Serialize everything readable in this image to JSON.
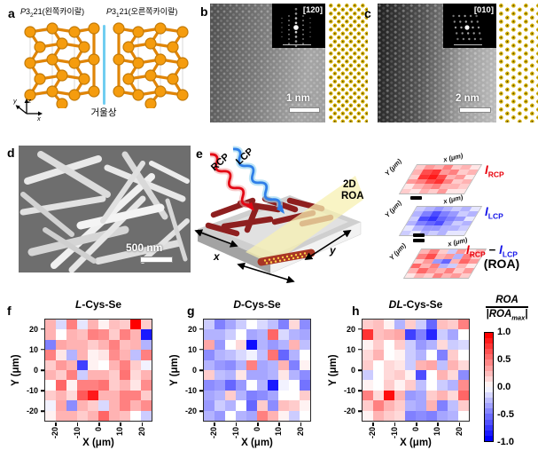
{
  "figure": {
    "panels": {
      "a": {
        "label": "a",
        "title_left": {
          "pre": "P",
          "mid": "3",
          "sub": "2",
          "post": "21(왼쪽카이랄)"
        },
        "title_right": {
          "pre": "P",
          "mid": "3",
          "sub": "1",
          "post": "21(오른쪽카이랄)"
        },
        "mirror_label": "거울상",
        "axes": {
          "x": "x",
          "y": "y",
          "z": "z"
        }
      },
      "b": {
        "label": "b",
        "fft_label": "[120]",
        "scale_bar": "1 nm"
      },
      "c": {
        "label": "c",
        "fft_label": "[010]",
        "scale_bar": "2 nm"
      },
      "d": {
        "label": "d",
        "scale_bar": "500 nm"
      },
      "e": {
        "label": "e",
        "rcp_label": "RCP",
        "lcp_label": "LCP",
        "beam_line1": "2D",
        "beam_line2": "ROA",
        "x_axis_label": "x",
        "y_axis_label": "y",
        "map_axis": {
          "x": "x (μm)",
          "y": "Y (μm)"
        },
        "i_rcp": {
          "base": "I",
          "sub": "RCP"
        },
        "i_lcp": {
          "base": "I",
          "sub": "LCP"
        },
        "minus_sign": "−",
        "equals_sign": "=",
        "roa_caption": "(ROA)",
        "colors": {
          "rcp": "#e8000b",
          "lcp": "#1414e8"
        }
      },
      "f": {
        "label": "f"
      },
      "g": {
        "label": "g"
      },
      "h": {
        "label": "h"
      }
    },
    "colorbar": {
      "numerator": "ROA",
      "denominator_pre": "|ROA",
      "denominator_sub": "max",
      "denominator_post": "|",
      "tick_labels": [
        "1.0",
        "0.5",
        "0.0",
        "-0.5",
        "-1.0"
      ],
      "range": [
        1.0,
        -1.0
      ],
      "segments": 20,
      "top_color": "#ff0000",
      "mid_color": "#ffffff",
      "bottom_color": "#0000ff"
    },
    "chart_data": [
      {
        "id": "f",
        "type": "heatmap",
        "colormap": "bwr",
        "title_italic": "L",
        "title_rest": "-Cys-Se",
        "xlabel": "X (μm)",
        "ylabel": "Y (μm)",
        "x_ticks": [
          "-20",
          "-10",
          "0",
          "10",
          "20"
        ],
        "y_ticks": [
          "20",
          "10",
          "0",
          "-10",
          "-20"
        ],
        "x_range": [
          -25,
          25
        ],
        "y_range": [
          -25,
          25
        ],
        "value_range": [
          -1,
          1
        ],
        "values": [
          [
            0.3,
            -0.15,
            0.5,
            -0.1,
            0.3,
            0.05,
            0.25,
            0.2,
            1.0,
            0.2
          ],
          [
            0.3,
            0.0,
            0.3,
            0.25,
            0.5,
            0.45,
            0.2,
            0.5,
            0.3,
            -0.9
          ],
          [
            -0.5,
            0.35,
            0.3,
            0.3,
            0.2,
            0.3,
            0.5,
            0.25,
            0.3,
            -0.3
          ],
          [
            0.5,
            0.1,
            -0.3,
            0.3,
            0.05,
            0.1,
            0.45,
            0.3,
            -0.25,
            0.5
          ],
          [
            0.2,
            0.4,
            0.3,
            -0.75,
            0.05,
            0.0,
            0.3,
            0.5,
            0.2,
            -0.05
          ],
          [
            0.3,
            0.2,
            0.5,
            -0.2,
            0.3,
            0.3,
            0.2,
            0.55,
            0.15,
            0.3
          ],
          [
            0.0,
            0.6,
            0.05,
            0.5,
            0.5,
            0.55,
            0.2,
            0.3,
            0.1,
            0.45
          ],
          [
            0.2,
            0.3,
            0.15,
            0.65,
            0.9,
            0.3,
            0.3,
            0.5,
            0.5,
            0.2
          ],
          [
            -0.05,
            0.35,
            -0.45,
            0.3,
            0.2,
            -0.15,
            0.3,
            0.5,
            0.3,
            0.45
          ],
          [
            0.05,
            0.3,
            0.3,
            0.2,
            0.3,
            0.6,
            0.3,
            0.25,
            0.0,
            -0.2
          ]
        ]
      },
      {
        "id": "g",
        "type": "heatmap",
        "colormap": "bwr",
        "title_italic": "D",
        "title_rest": "-Cys-Se",
        "xlabel": "X (μm)",
        "ylabel": "Y (μm)",
        "x_ticks": [
          "-20",
          "-10",
          "0",
          "10",
          "20"
        ],
        "y_ticks": [
          "20",
          "10",
          "0",
          "-10",
          "-20"
        ],
        "x_range": [
          -25,
          25
        ],
        "y_range": [
          -25,
          25
        ],
        "value_range": [
          -1,
          1
        ],
        "values": [
          [
            -0.2,
            -0.5,
            -0.35,
            -0.2,
            0.0,
            -0.15,
            -0.25,
            -0.5,
            0.15,
            -0.45
          ],
          [
            -0.3,
            -0.3,
            -0.2,
            0.0,
            -0.35,
            -0.3,
            0.6,
            -0.15,
            -0.3,
            -0.35
          ],
          [
            0.35,
            -0.4,
            0.0,
            0.15,
            -0.95,
            -0.3,
            -0.4,
            -0.3,
            0.3,
            -0.25
          ],
          [
            -0.45,
            -0.3,
            -0.25,
            -0.15,
            -0.05,
            -0.25,
            0.55,
            -0.6,
            -0.3,
            0.0
          ],
          [
            -0.3,
            -0.4,
            -0.45,
            -0.3,
            0.5,
            -0.35,
            -0.3,
            0.3,
            -0.5,
            0.05
          ],
          [
            0.2,
            -0.25,
            -0.3,
            0.1,
            -0.35,
            -0.35,
            -0.3,
            0.1,
            -0.3,
            -0.45
          ],
          [
            -0.45,
            -0.4,
            -0.6,
            -0.4,
            0.0,
            -0.3,
            -0.9,
            -0.05,
            0.0,
            -0.55
          ],
          [
            -0.35,
            -0.3,
            0.2,
            -0.3,
            -0.5,
            -0.45,
            -0.35,
            0.0,
            0.0,
            0.2
          ],
          [
            -0.4,
            -0.2,
            -0.3,
            0.0,
            -0.6,
            0.2,
            -0.45,
            0.25,
            0.2,
            0.05
          ],
          [
            -0.3,
            -0.4,
            0.0,
            -0.3,
            -0.35,
            0.5,
            0.3,
            0.05,
            -0.2,
            0.0
          ]
        ]
      },
      {
        "id": "h",
        "type": "heatmap",
        "colormap": "bwr",
        "title_italic": "DL",
        "title_rest": "-Cys-Se",
        "xlabel": "X (μm)",
        "ylabel": "Y (μm)",
        "x_ticks": [
          "-20",
          "-10",
          "0",
          "10",
          "20"
        ],
        "y_ticks": [
          "20",
          "10",
          "0",
          "-10",
          "-20"
        ],
        "x_range": [
          -25,
          25
        ],
        "y_range": [
          -25,
          25
        ],
        "value_range": [
          -1,
          1
        ],
        "values": [
          [
            0.2,
            0.25,
            0.05,
            -0.3,
            0.2,
            -0.2,
            -0.6,
            0.25,
            0.2,
            0.5
          ],
          [
            0.8,
            0.25,
            0.3,
            0.35,
            -0.75,
            -0.5,
            -0.85,
            -0.2,
            -0.35,
            0.0
          ],
          [
            0.05,
            0.2,
            0.0,
            0.2,
            -0.2,
            -0.4,
            -0.3,
            0.15,
            -0.2,
            -0.15
          ],
          [
            0.15,
            0.3,
            0.0,
            0.05,
            -0.2,
            -0.3,
            0.0,
            -0.5,
            0.2,
            0.0
          ],
          [
            0.2,
            0.0,
            0.15,
            0.1,
            -0.2,
            0.3,
            0.35,
            -0.25,
            0.3,
            0.15
          ],
          [
            -0.2,
            0.0,
            0.15,
            0.2,
            0.05,
            -0.7,
            0.0,
            0.3,
            0.15,
            -0.45
          ],
          [
            0.05,
            0.0,
            0.2,
            0.05,
            0.2,
            -0.25,
            0.0,
            -0.2,
            -0.3,
            0.45
          ],
          [
            0.5,
            0.15,
            0.95,
            0.3,
            -0.4,
            -0.35,
            0.2,
            0.3,
            0.15,
            0.6
          ],
          [
            0.2,
            0.5,
            0.3,
            0.2,
            -0.3,
            -0.35,
            0.3,
            -0.5,
            -0.25,
            0.2
          ],
          [
            0.05,
            0.3,
            0.2,
            0.15,
            -0.5,
            -0.45,
            -0.5,
            -0.35,
            -0.3,
            0.0
          ]
        ]
      },
      {
        "id": "rcp_mini",
        "type": "heatmap",
        "colormap": "bwr",
        "values": [
          [
            0.2,
            0.4,
            0.3,
            0.5,
            0.2,
            0.3,
            0.1
          ],
          [
            0.3,
            0.7,
            0.8,
            0.4,
            0.5,
            0.2,
            0.3
          ],
          [
            0.2,
            0.8,
            0.9,
            0.7,
            0.3,
            0.4,
            0.1
          ],
          [
            0.4,
            0.5,
            0.7,
            0.8,
            0.5,
            0.2,
            0.3
          ],
          [
            0.1,
            0.3,
            0.4,
            0.5,
            0.3,
            0.3,
            0.2
          ],
          [
            0.2,
            0.1,
            0.3,
            0.2,
            0.4,
            0.1,
            0.1
          ]
        ]
      },
      {
        "id": "lcp_mini",
        "type": "heatmap",
        "colormap": "bwr",
        "values": [
          [
            -0.2,
            -0.3,
            -0.4,
            -0.3,
            -0.2,
            -0.3,
            -0.1
          ],
          [
            -0.3,
            -0.5,
            -0.7,
            -0.5,
            -0.4,
            -0.2,
            -0.3
          ],
          [
            -0.2,
            -0.7,
            -0.8,
            -0.6,
            -0.5,
            -0.4,
            -0.1
          ],
          [
            -0.3,
            -0.5,
            -0.6,
            -0.7,
            -0.4,
            -0.2,
            -0.3
          ],
          [
            -0.1,
            -0.3,
            -0.4,
            -0.4,
            -0.3,
            -0.3,
            -0.2
          ],
          [
            -0.2,
            -0.1,
            -0.3,
            -0.2,
            -0.3,
            -0.1,
            -0.1
          ]
        ]
      },
      {
        "id": "roa_mini",
        "type": "heatmap",
        "colormap": "bwr",
        "values": [
          [
            0.3,
            0.5,
            0.2,
            -0.2,
            0.4,
            0.1,
            0.3
          ],
          [
            0.5,
            0.7,
            0.3,
            0.4,
            -0.3,
            0.5,
            0.2
          ],
          [
            0.2,
            0.4,
            -0.4,
            -0.6,
            0.3,
            0.6,
            0.4
          ],
          [
            0.6,
            0.3,
            0.5,
            -0.3,
            -0.2,
            0.3,
            0.1
          ],
          [
            0.3,
            0.6,
            0.4,
            0.3,
            0.5,
            0.2,
            0.4
          ],
          [
            0.1,
            0.3,
            0.2,
            0.5,
            0.3,
            0.4,
            0.2
          ]
        ]
      }
    ]
  }
}
